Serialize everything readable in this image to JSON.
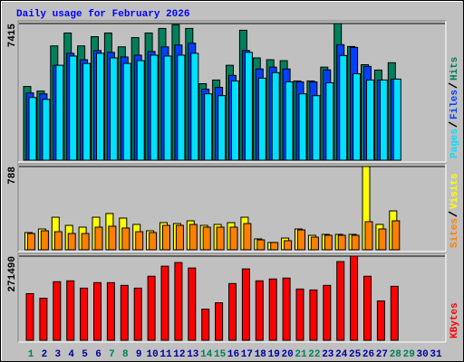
{
  "title": "Daily usage for February 2026",
  "chart_data": [
    {
      "type": "bar",
      "ylim": [
        0,
        7415
      ],
      "yticks": [
        7415
      ],
      "series": [
        {
          "name": "Hits",
          "color": "#00805c",
          "values": [
            4000,
            3750,
            6200,
            6900,
            6200,
            6700,
            6900,
            6150,
            6650,
            6900,
            7150,
            7350,
            7150,
            4150,
            4350,
            5150,
            7050,
            5550,
            5450,
            5400,
            4300,
            4300,
            5050,
            7415,
            6170,
            5180,
            4890,
            5290,
            null,
            null,
            null
          ]
        },
        {
          "name": "Files",
          "color": "#0040ff",
          "values": [
            3650,
            3600,
            5150,
            5800,
            5450,
            5950,
            5850,
            5600,
            5700,
            5900,
            6150,
            6250,
            6350,
            3850,
            3950,
            4600,
            5950,
            4950,
            5050,
            4950,
            4250,
            4250,
            4900,
            6270,
            6120,
            5090,
            4350,
            4400,
            null,
            null,
            null
          ]
        },
        {
          "name": "Pages",
          "color": "#00e0ff",
          "values": [
            3400,
            3300,
            5150,
            5650,
            5250,
            5800,
            5550,
            5250,
            5400,
            5700,
            5650,
            5700,
            5800,
            3600,
            3500,
            4300,
            5850,
            4450,
            4750,
            4250,
            3600,
            3500,
            4200,
            5680,
            4690,
            4350,
            4350,
            4400,
            null,
            null,
            null
          ]
        }
      ]
    },
    {
      "type": "bar",
      "ylim": [
        0,
        788
      ],
      "yticks": [
        788
      ],
      "series": [
        {
          "name": "Visits",
          "color": "#ffff00",
          "values": [
            163,
            197,
            308,
            231,
            214,
            308,
            343,
            300,
            240,
            180,
            257,
            248,
            274,
            231,
            240,
            257,
            308,
            103,
            69,
            111,
            197,
            137,
            146,
            146,
            146,
            788,
            240,
            368,
            null,
            null,
            null
          ]
        },
        {
          "name": "Sites",
          "color": "#ff8000",
          "values": [
            154,
            180,
            171,
            154,
            154,
            214,
            223,
            206,
            171,
            163,
            231,
            231,
            240,
            214,
            214,
            214,
            248,
            94,
            69,
            86,
            188,
            120,
            137,
            137,
            137,
            266,
            197,
            274,
            null,
            null,
            null
          ]
        }
      ]
    },
    {
      "type": "bar",
      "ylim": [
        0,
        271490
      ],
      "yticks": [
        271490
      ],
      "categories": [
        "1",
        "2",
        "3",
        "4",
        "5",
        "6",
        "7",
        "8",
        "9",
        "10",
        "11",
        "12",
        "13",
        "14",
        "15",
        "16",
        "17",
        "18",
        "19",
        "20",
        "21",
        "22",
        "23",
        "24",
        "25",
        "26",
        "27",
        "28",
        "29",
        "30",
        "31"
      ],
      "label_colors": [
        "#00805c",
        "#0000a0",
        "#0000a0",
        "#0000a0",
        "#0000a0",
        "#0000a0",
        "#00805c",
        "#00805c",
        "#0000a0",
        "#0000a0",
        "#0000a0",
        "#0000a0",
        "#0000a0",
        "#00805c",
        "#00805c",
        "#0000a0",
        "#0000a0",
        "#0000a0",
        "#0000a0",
        "#0000a0",
        "#00805c",
        "#00805c",
        "#0000a0",
        "#0000a0",
        "#0000a0",
        "#0000a0",
        "#0000a0",
        "#00805c",
        "#00805c",
        "#0000a0",
        "#0000a0"
      ],
      "series": [
        {
          "name": "KBytes",
          "color": "#ff0000",
          "values": [
            150500,
            135700,
            188900,
            191800,
            168200,
            185900,
            185900,
            177100,
            168200,
            206600,
            239000,
            250800,
            233100,
            100300,
            121000,
            183000,
            230200,
            191800,
            197700,
            200700,
            165300,
            162300,
            177100,
            253800,
            271490,
            206600,
            126900,
            174100,
            null,
            null,
            null
          ]
        }
      ]
    }
  ]
}
